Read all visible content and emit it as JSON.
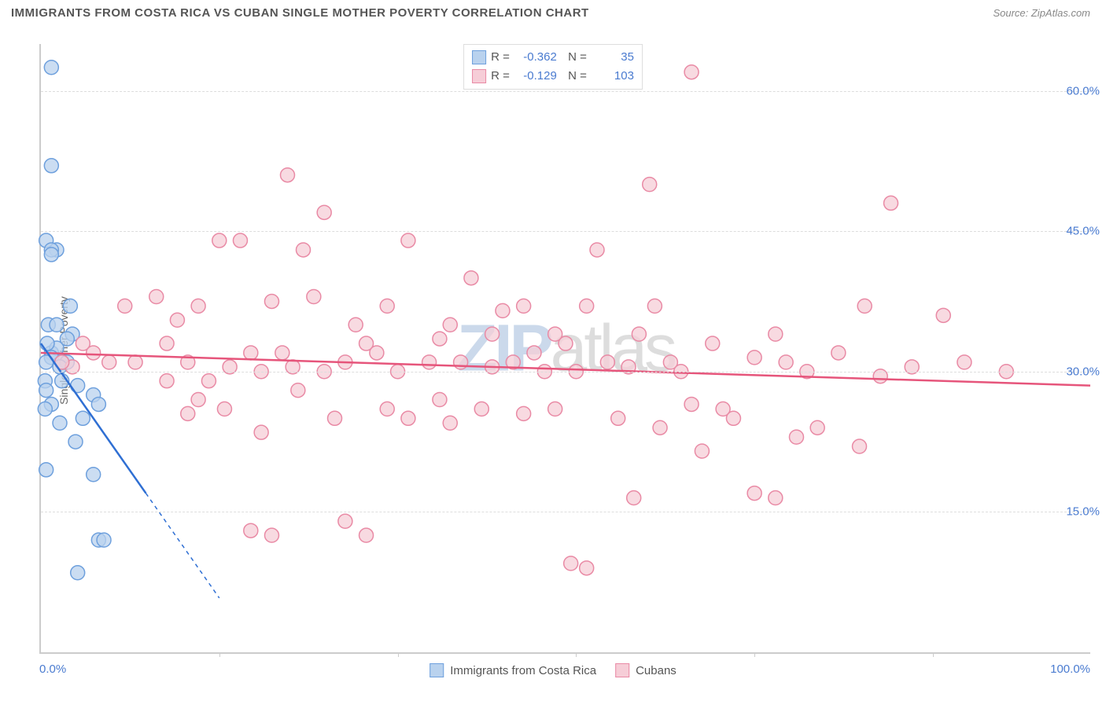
{
  "title": "IMMIGRANTS FROM COSTA RICA VS CUBAN SINGLE MOTHER POVERTY CORRELATION CHART",
  "source": "Source: ZipAtlas.com",
  "ylabel": "Single Mother Poverty",
  "watermark_z": "ZIP",
  "watermark_rest": "atlas",
  "chart": {
    "type": "scatter",
    "xlim": [
      0,
      100
    ],
    "ylim": [
      0,
      65
    ],
    "yticks": [
      15.0,
      30.0,
      45.0,
      60.0
    ],
    "ytick_labels": [
      "15.0%",
      "30.0%",
      "45.0%",
      "60.0%"
    ],
    "xtick_left": "0.0%",
    "xtick_right": "100.0%",
    "vgrid_x": [
      17,
      34,
      51,
      68,
      85
    ],
    "background_color": "#ffffff",
    "grid_color": "#dddddd",
    "series": [
      {
        "name": "Immigrants from Costa Rica",
        "color_fill": "#b9d2ee",
        "color_stroke": "#6ea0dd",
        "marker_radius": 9,
        "R": "-0.362",
        "N": "35",
        "regression": {
          "x1": 0,
          "y1": 33,
          "x2": 10,
          "y2": 17,
          "extrap_x": 17,
          "extrap_y": 5.8,
          "color": "#2f6fd3"
        },
        "points": [
          [
            1.0,
            62.5
          ],
          [
            1.0,
            52
          ],
          [
            0.5,
            44
          ],
          [
            1.5,
            43
          ],
          [
            1.0,
            43
          ],
          [
            1.0,
            42.5
          ],
          [
            0.7,
            35
          ],
          [
            1.5,
            35
          ],
          [
            2.8,
            37
          ],
          [
            3.0,
            34
          ],
          [
            1.0,
            32
          ],
          [
            1.5,
            32.5
          ],
          [
            1.0,
            31.5
          ],
          [
            2.5,
            33.5
          ],
          [
            0.5,
            31
          ],
          [
            2.0,
            31
          ],
          [
            2.5,
            31
          ],
          [
            1.8,
            30.5
          ],
          [
            0.4,
            29
          ],
          [
            0.5,
            28
          ],
          [
            2.0,
            29
          ],
          [
            3.5,
            28.5
          ],
          [
            5.0,
            27.5
          ],
          [
            5.5,
            26.5
          ],
          [
            1.0,
            26.5
          ],
          [
            0.4,
            26
          ],
          [
            1.8,
            24.5
          ],
          [
            4.0,
            25
          ],
          [
            3.3,
            22.5
          ],
          [
            0.5,
            19.5
          ],
          [
            5.0,
            19
          ],
          [
            5.5,
            12
          ],
          [
            6.0,
            12
          ],
          [
            3.5,
            8.5
          ],
          [
            0.6,
            33
          ]
        ]
      },
      {
        "name": "Cubans",
        "color_fill": "#f6cdd7",
        "color_stroke": "#e98aa5",
        "marker_radius": 9,
        "R": "-0.129",
        "N": "103",
        "regression": {
          "x1": 0,
          "y1": 32,
          "x2": 100,
          "y2": 28.5,
          "color": "#e6557b"
        },
        "points": [
          [
            4,
            33
          ],
          [
            5,
            32
          ],
          [
            6.5,
            31
          ],
          [
            3,
            30.5
          ],
          [
            2,
            31
          ],
          [
            8,
            37
          ],
          [
            9,
            31
          ],
          [
            11,
            38
          ],
          [
            12,
            33
          ],
          [
            12,
            29
          ],
          [
            13,
            35.5
          ],
          [
            14,
            31
          ],
          [
            14,
            25.5
          ],
          [
            15,
            27
          ],
          [
            15,
            37
          ],
          [
            16,
            29
          ],
          [
            17,
            44
          ],
          [
            17.5,
            26
          ],
          [
            18,
            30.5
          ],
          [
            19,
            44
          ],
          [
            20,
            32
          ],
          [
            20,
            13
          ],
          [
            21,
            23.5
          ],
          [
            21,
            30
          ],
          [
            22,
            37.5
          ],
          [
            22,
            12.5
          ],
          [
            23,
            32
          ],
          [
            23.5,
            51
          ],
          [
            24,
            30.5
          ],
          [
            24.5,
            28
          ],
          [
            25,
            43
          ],
          [
            26,
            38
          ],
          [
            27,
            30
          ],
          [
            27,
            47
          ],
          [
            28,
            25
          ],
          [
            29,
            31
          ],
          [
            29,
            14
          ],
          [
            30,
            35
          ],
          [
            31,
            33
          ],
          [
            31,
            12.5
          ],
          [
            32,
            32
          ],
          [
            33,
            37
          ],
          [
            33,
            26
          ],
          [
            34,
            30
          ],
          [
            35,
            44
          ],
          [
            35,
            25
          ],
          [
            37,
            31
          ],
          [
            38,
            33.5
          ],
          [
            38,
            27
          ],
          [
            39,
            35
          ],
          [
            39,
            24.5
          ],
          [
            40,
            31
          ],
          [
            41,
            40
          ],
          [
            42,
            26
          ],
          [
            43,
            30.5
          ],
          [
            43,
            34
          ],
          [
            44,
            36.5
          ],
          [
            45,
            31
          ],
          [
            46,
            37
          ],
          [
            46,
            25.5
          ],
          [
            47,
            32
          ],
          [
            48,
            30
          ],
          [
            49,
            34
          ],
          [
            49,
            26
          ],
          [
            50.5,
            9.5
          ],
          [
            50,
            33
          ],
          [
            51,
            30
          ],
          [
            52,
            37
          ],
          [
            52,
            9
          ],
          [
            53,
            43
          ],
          [
            54,
            31
          ],
          [
            55,
            25
          ],
          [
            56,
            30.5
          ],
          [
            56.5,
            16.5
          ],
          [
            57,
            34
          ],
          [
            58,
            50
          ],
          [
            58.5,
            37
          ],
          [
            59,
            24
          ],
          [
            60,
            31
          ],
          [
            61,
            30
          ],
          [
            62,
            62
          ],
          [
            62,
            26.5
          ],
          [
            63,
            21.5
          ],
          [
            64,
            33
          ],
          [
            65,
            26
          ],
          [
            66,
            25
          ],
          [
            68,
            31.5
          ],
          [
            68,
            17
          ],
          [
            70,
            16.5
          ],
          [
            70,
            34
          ],
          [
            71,
            31
          ],
          [
            72,
            23
          ],
          [
            73,
            30
          ],
          [
            74,
            24
          ],
          [
            76,
            32
          ],
          [
            78,
            22
          ],
          [
            78.5,
            37
          ],
          [
            80,
            29.5
          ],
          [
            81,
            48
          ],
          [
            83,
            30.5
          ],
          [
            86,
            36
          ],
          [
            88,
            31
          ],
          [
            92,
            30
          ]
        ]
      }
    ]
  }
}
